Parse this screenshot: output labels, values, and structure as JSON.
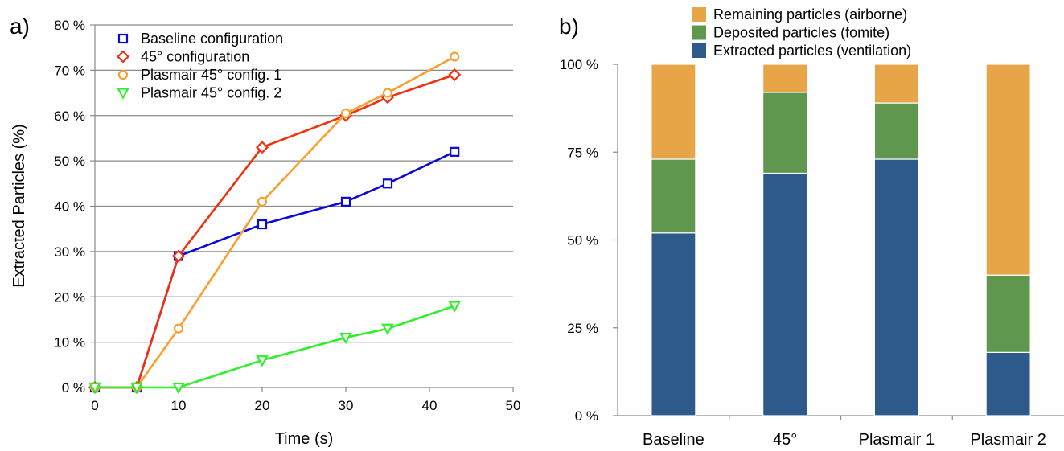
{
  "chart_data": [
    {
      "panel_label": "a)",
      "type": "line",
      "xlabel": "Time (s)",
      "ylabel": "Extracted Particles (%)",
      "xlim": [
        0,
        50
      ],
      "ylim": [
        0,
        80
      ],
      "xticks": [
        "0",
        "10",
        "20",
        "30",
        "40",
        "50"
      ],
      "yticks": [
        "0 %",
        "10 %",
        "20 %",
        "30 %",
        "40 %",
        "50 %",
        "60 %",
        "70 %",
        "80 %"
      ],
      "grid": "horizontal",
      "legend_position": "top-left",
      "series": [
        {
          "name": "Baseline configuration",
          "color": "#0a0ad8",
          "marker": "square",
          "x": [
            0,
            5,
            10,
            20,
            30,
            35,
            43
          ],
          "y": [
            0,
            0,
            29,
            36,
            41,
            45,
            52
          ]
        },
        {
          "name": "45° configuration",
          "color": "#f0300e",
          "marker": "diamond",
          "x": [
            0,
            5,
            10,
            20,
            30,
            35,
            43
          ],
          "y": [
            0,
            0,
            29,
            53,
            60,
            64,
            69
          ]
        },
        {
          "name": "Plasmair 45° config. 1",
          "color": "#f7a030",
          "marker": "circle",
          "x": [
            0,
            5,
            10,
            20,
            30,
            35,
            43
          ],
          "y": [
            0,
            0,
            13,
            41,
            60.5,
            65,
            73
          ]
        },
        {
          "name": "Plasmair 45° config. 2",
          "color": "#2ef02a",
          "marker": "triangle-down",
          "x": [
            0,
            5,
            10,
            20,
            30,
            35,
            43
          ],
          "y": [
            0,
            0,
            0,
            6,
            11,
            13,
            18
          ]
        }
      ]
    },
    {
      "panel_label": "b)",
      "type": "bar",
      "stacked": true,
      "categories": [
        "Baseline",
        "45°",
        "Plasmair 1",
        "Plasmair 2"
      ],
      "ylim": [
        0,
        100
      ],
      "yticks": [
        "0 %",
        "25 %",
        "50 %",
        "75 %",
        "100 %"
      ],
      "legend_position": "top",
      "series": [
        {
          "name": "Extracted particles (ventilation)",
          "color": "#2d5a8a",
          "values": [
            52,
            69,
            73,
            18
          ]
        },
        {
          "name": "Deposited particles (fomite)",
          "color": "#5f974f",
          "values": [
            21,
            23,
            16,
            22
          ]
        },
        {
          "name": "Remaining particles (airborne)",
          "color": "#e8a547",
          "values": [
            27,
            8,
            11,
            60
          ]
        }
      ]
    }
  ]
}
